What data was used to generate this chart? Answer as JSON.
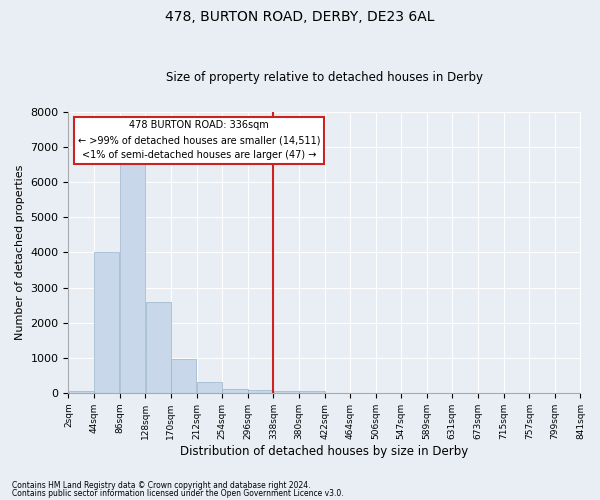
{
  "title": "478, BURTON ROAD, DERBY, DE23 6AL",
  "subtitle": "Size of property relative to detached houses in Derby",
  "xlabel": "Distribution of detached houses by size in Derby",
  "ylabel": "Number of detached properties",
  "bar_color": "#c8d8ea",
  "bar_edgecolor": "#9ab4cc",
  "vline_color": "#cc2222",
  "vline_x": 338,
  "bin_edges": [
    2,
    44,
    86,
    128,
    170,
    212,
    254,
    296,
    338,
    380,
    422,
    464,
    506,
    547,
    589,
    631,
    673,
    715,
    757,
    799,
    841
  ],
  "bar_heights": [
    55,
    4000,
    6600,
    2600,
    960,
    315,
    120,
    90,
    60,
    55,
    0,
    0,
    0,
    0,
    0,
    0,
    0,
    0,
    0,
    0
  ],
  "tick_labels": [
    "2sqm",
    "44sqm",
    "86sqm",
    "128sqm",
    "170sqm",
    "212sqm",
    "254sqm",
    "296sqm",
    "338sqm",
    "380sqm",
    "422sqm",
    "464sqm",
    "506sqm",
    "547sqm",
    "589sqm",
    "631sqm",
    "673sqm",
    "715sqm",
    "757sqm",
    "799sqm",
    "841sqm"
  ],
  "ylim": [
    0,
    8000
  ],
  "yticks": [
    0,
    1000,
    2000,
    3000,
    4000,
    5000,
    6000,
    7000,
    8000
  ],
  "annotation_title": "478 BURTON ROAD: 336sqm",
  "annotation_line1": "← >99% of detached houses are smaller (14,511)",
  "annotation_line2": "<1% of semi-detached houses are larger (47) →",
  "annotation_box_facecolor": "#ffffff",
  "annotation_box_edgecolor": "#cc2222",
  "footer1": "Contains HM Land Registry data © Crown copyright and database right 2024.",
  "footer2": "Contains public sector information licensed under the Open Government Licence v3.0.",
  "background_color": "#e8eef4",
  "plot_background": "#e8eef4",
  "grid_color": "#ffffff",
  "spine_color": "#aaaaaa",
  "title_fontsize": 10,
  "subtitle_fontsize": 8.5,
  "ylabel_fontsize": 8,
  "xlabel_fontsize": 8.5,
  "ytick_fontsize": 8,
  "xtick_fontsize": 6.5,
  "annotation_fontsize": 7,
  "footer_fontsize": 5.5
}
